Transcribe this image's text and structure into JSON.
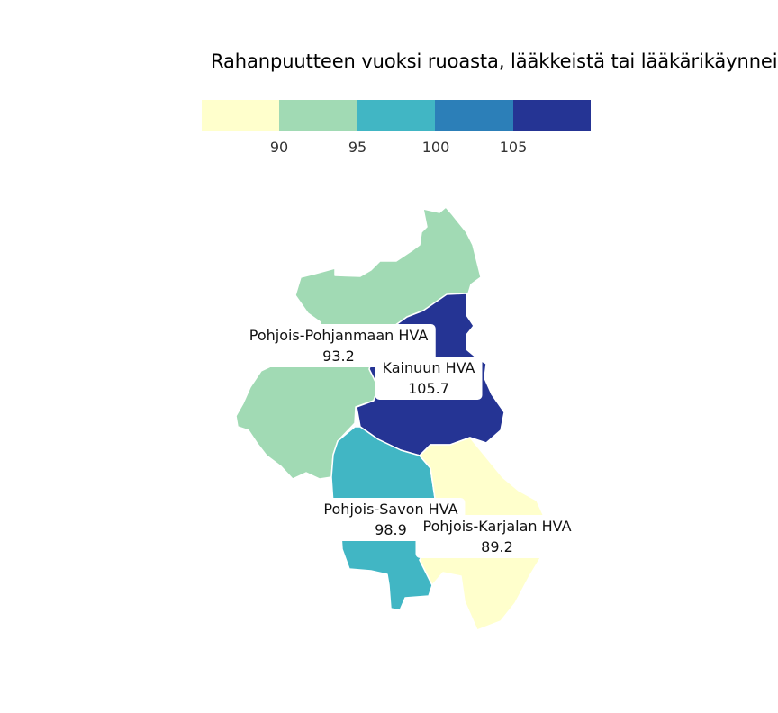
{
  "title": "Rahanpuutteen vuoksi ruoasta, lääkkeistä tai lääkärikäynneis",
  "legend": {
    "colors": [
      "#ffffcc",
      "#a1dab4",
      "#41b6c4",
      "#2c7fb8",
      "#253494"
    ],
    "ticks": [
      "90",
      "95",
      "100",
      "105"
    ]
  },
  "regions": [
    {
      "name": "Pohjois-Pohjanmaan HVA",
      "value": "93.2",
      "color": "#a1dab4",
      "icon": "region-shape"
    },
    {
      "name": "Kainuun HVA",
      "value": "105.7",
      "color": "#253494",
      "icon": "region-shape"
    },
    {
      "name": "Pohjois-Savon HVA",
      "value": "98.9",
      "color": "#41b6c4",
      "icon": "region-shape"
    },
    {
      "name": "Pohjois-Karjalan HVA",
      "value": "89.2",
      "color": "#ffffcc",
      "icon": "region-shape"
    }
  ]
}
